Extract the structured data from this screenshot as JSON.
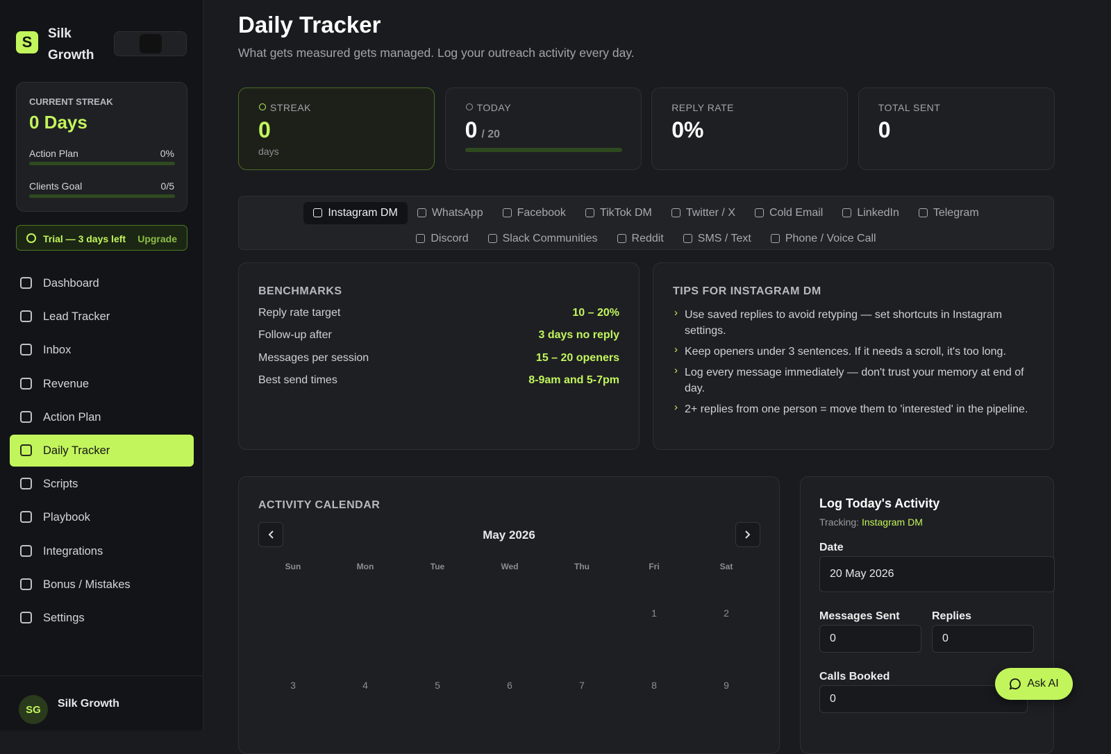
{
  "sidebar": {
    "logo": "S",
    "brand": "Silk Growth",
    "streak": {
      "label": "CURRENT STREAK",
      "value": "0 Days",
      "progress": [
        {
          "label": "Action Plan",
          "value": "0%"
        },
        {
          "label": "Clients Goal",
          "value": "0/5"
        }
      ]
    },
    "trial": {
      "text": "Trial — 3 days left",
      "action": "Upgrade"
    },
    "nav": [
      {
        "label": "Dashboard"
      },
      {
        "label": "Lead Tracker"
      },
      {
        "label": "Inbox"
      },
      {
        "label": "Revenue"
      },
      {
        "label": "Action Plan"
      },
      {
        "label": "Daily Tracker",
        "active": true
      },
      {
        "label": "Scripts"
      },
      {
        "label": "Playbook"
      },
      {
        "label": "Integrations"
      },
      {
        "label": "Bonus / Mistakes"
      },
      {
        "label": "Settings"
      }
    ],
    "user": {
      "initials": "SG",
      "name": "Silk Growth"
    }
  },
  "header": {
    "title": "Daily Tracker",
    "subtitle": "What gets measured gets managed. Log your outreach activity every day."
  },
  "stats": [
    {
      "label": "STREAK",
      "value": "0",
      "unit": "days",
      "active": true
    },
    {
      "label": "TODAY",
      "value": "0",
      "target": "/ 20"
    },
    {
      "label": "REPLY RATE",
      "value": "0%"
    },
    {
      "label": "TOTAL SENT",
      "value": "0"
    }
  ],
  "channels": {
    "rows": [
      [
        {
          "label": "Instagram DM",
          "active": true
        },
        {
          "label": "WhatsApp"
        },
        {
          "label": "Facebook"
        },
        {
          "label": "TikTok DM"
        },
        {
          "label": "Twitter / X"
        },
        {
          "label": "Cold Email"
        },
        {
          "label": "LinkedIn"
        },
        {
          "label": "Telegram"
        }
      ],
      [
        {
          "label": "Discord"
        },
        {
          "label": "Slack Communities"
        },
        {
          "label": "Reddit"
        },
        {
          "label": "SMS / Text"
        },
        {
          "label": "Phone / Voice Call"
        }
      ]
    ]
  },
  "benchmarks": {
    "title": "BENCHMARKS",
    "rows": [
      [
        "Reply rate target",
        "10 – 20%"
      ],
      [
        "Follow-up after",
        "3 days no reply"
      ],
      [
        "Messages per session",
        "15 – 20 openers"
      ],
      [
        "Best send times",
        "8-9am and 5-7pm"
      ]
    ]
  },
  "tips": {
    "title": "TIPS FOR INSTAGRAM DM",
    "items": [
      "Use saved replies to avoid retyping — set shortcuts in Instagram settings.",
      "Keep openers under 3 sentences. If it needs a scroll, it's too long.",
      "Log every message immediately — don't trust your memory at end of day.",
      "2+ replies from one person = move them to 'interested' in the pipeline."
    ]
  },
  "calendar": {
    "title": "ACTIVITY CALENDAR",
    "month": "May 2026",
    "weekdays": [
      "Sun",
      "Mon",
      "Tue",
      "Wed",
      "Thu",
      "Fri",
      "Sat"
    ],
    "weeks": [
      [
        null,
        null,
        null,
        null,
        null,
        1,
        2
      ],
      [
        3,
        4,
        5,
        6,
        7,
        8,
        9
      ]
    ]
  },
  "log": {
    "title": "Log Today's Activity",
    "tracking_label": "Tracking:",
    "tracking_value": "Instagram DM",
    "fields": [
      {
        "label": "Date",
        "value": "20 May 2026"
      },
      {
        "label": "Messages Sent",
        "value": "0"
      },
      {
        "label": "Replies",
        "value": "0"
      },
      {
        "label": "Calls Booked",
        "value": "0"
      }
    ]
  },
  "ask_ai": "Ask AI"
}
